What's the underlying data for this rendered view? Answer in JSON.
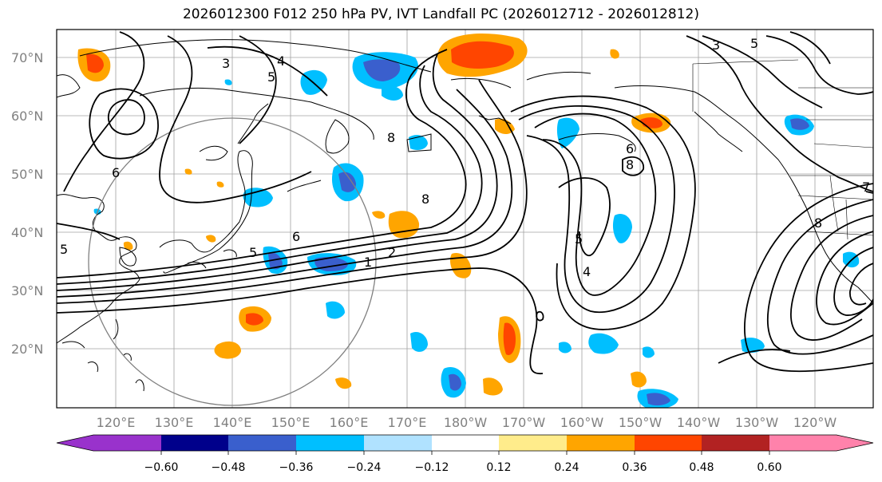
{
  "title": "2026012300 F012 250 hPa PV, IVT Landfall PC (2026012712 - 2026012812)",
  "map": {
    "lat_labels": [
      "70°N",
      "60°N",
      "50°N",
      "40°N",
      "30°N",
      "20°N"
    ],
    "lon_labels": [
      "120°E",
      "130°E",
      "140°E",
      "150°E",
      "160°E",
      "170°E",
      "180°W",
      "170°W",
      "160°W",
      "150°W",
      "140°W",
      "130°W",
      "120°W"
    ],
    "contour_labels": [
      "3",
      "4",
      "5",
      "6",
      "7",
      "8",
      "1",
      "2",
      "5",
      "6",
      "8"
    ]
  },
  "colorbar": {
    "colors": [
      "#9932cc",
      "#00008b",
      "#3a5fcd",
      "#00bfff",
      "#b0e2ff",
      "#ffffff",
      "#ffec8b",
      "#ffa500",
      "#ff4500",
      "#b22222",
      "#ff82ab"
    ],
    "tick_labels": [
      "−0.60",
      "−0.48",
      "−0.36",
      "−0.24",
      "−0.12",
      "0.12",
      "0.24",
      "0.36",
      "0.48",
      "0.60"
    ]
  }
}
